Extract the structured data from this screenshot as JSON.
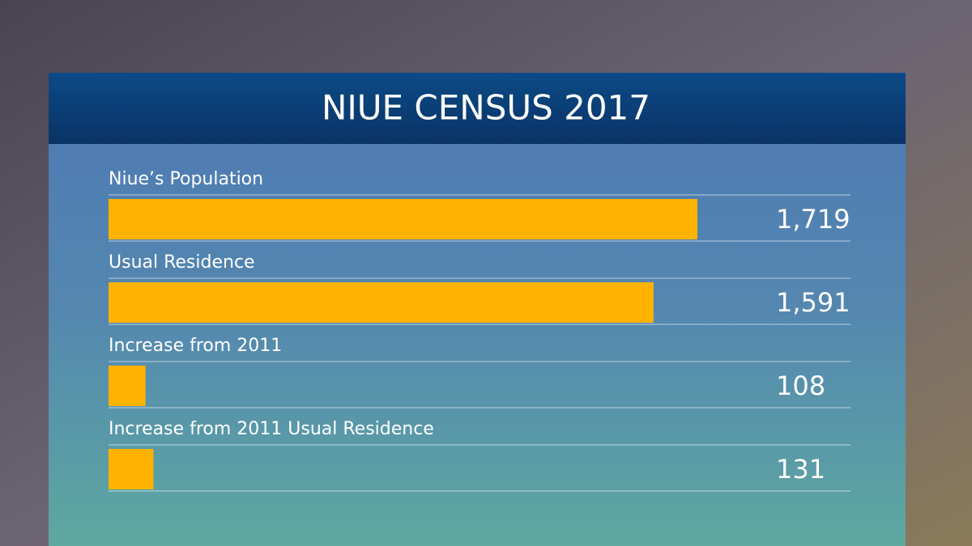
{
  "chart_data": {
    "type": "bar",
    "title": "NIUE CENSUS 2017",
    "categories": [
      "Niue’s Population",
      "Usual Residence",
      "Increase from 2011",
      "Increase from 2011 Usual Residence"
    ],
    "values": [
      1719,
      1591,
      108,
      131
    ],
    "value_labels": [
      "1,719",
      "1,591",
      "108",
      "131"
    ],
    "color": "#ffb300"
  }
}
